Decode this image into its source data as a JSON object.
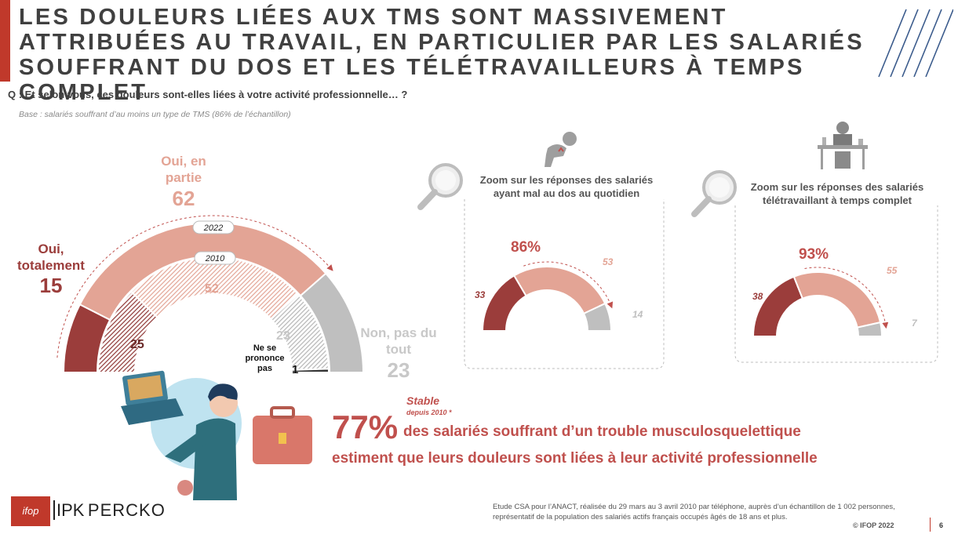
{
  "title": "LES DOULEURS LIÉES AUX TMS SONT MASSIVEMENT ATTRIBUÉES AU TRAVAIL, EN PARTICULIER PAR LES SALARIÉS SOUFFRANT DU DOS ET LES TÉLÉTRAVAILLEURS À TEMPS COMPLET",
  "question": "Q : Et selon vous, ces douleurs sont-elles liées à votre activité professionnelle… ?",
  "base": "Base : salariés souffrant d’au moins un type de TMS (86% de l’échantillon)",
  "colors": {
    "dark_red": "#9b3d3b",
    "salmon": "#e3a495",
    "grey": "#bfbfbf",
    "accent": "#c0504d",
    "title_bar": "#c0392b"
  },
  "chart_data": [
    {
      "type": "half-donut",
      "categories": [
        "Oui, totalement",
        "Oui, en partie",
        "Non, pas du tout",
        "Ne se prononce pas"
      ],
      "series": [
        {
          "name": "2022",
          "values": [
            15,
            62,
            23,
            0
          ]
        },
        {
          "name": "2010",
          "values": [
            25,
            52,
            23,
            1
          ]
        }
      ],
      "labels": {
        "oui_totalement_line1": "Oui,",
        "oui_totalement_line2": "totalement",
        "oui_totalement_value": "15",
        "oui_partie_line1": "Oui, en",
        "oui_partie_line2": "partie",
        "oui_partie_value": "62",
        "non_line1": "Non, pas du",
        "non_line2": "tout",
        "non_value": "23",
        "nsp_line1": "Ne se",
        "nsp_line2": "prononce",
        "nsp_line3": "pas",
        "nsp_value": "1",
        "inner_oui_totalement": "25",
        "inner_oui_partie": "52",
        "inner_non": "23",
        "year_outer": "2022",
        "year_inner": "2010"
      }
    },
    {
      "type": "half-donut",
      "title_line1": "Zoom sur les réponses des salariés",
      "title_line2": "ayant mal au dos au quotidien",
      "categories": [
        "Oui, totalement",
        "Oui, en partie",
        "Non, pas du tout"
      ],
      "values": [
        33,
        53,
        14
      ],
      "total_label": "86%"
    },
    {
      "type": "half-donut",
      "title_line1": "Zoom sur les réponses des salariés",
      "title_line2": "télétravaillant à temps complet",
      "categories": [
        "Oui, totalement",
        "Oui, en partie",
        "Non, pas du tout"
      ],
      "values": [
        38,
        55,
        7
      ],
      "total_label": "93%"
    }
  ],
  "highlight": {
    "stable": "Stable",
    "stable_sub": "depuis 2010 *",
    "percent": "77%",
    "line1": "des salariés souffrant d’un trouble musculosquelettique",
    "line2": "estiment que leurs douleurs sont liées à leur activité professionnelle"
  },
  "footnote": {
    "line1": "Etude CSA pour l’ANACT, réalisée du 29 mars au 3 avril 2010 par téléphone, auprès d’un échantillon de 1 002 personnes,",
    "line2": "représentatif de la population des salariés actifs français occupés âgés de 18 ans et plus."
  },
  "copyright": "© IFOP 2022",
  "page_number": "6",
  "logos": {
    "ifop": "ifop",
    "percko": "PERCKO",
    "percko_mark": "IPK"
  }
}
